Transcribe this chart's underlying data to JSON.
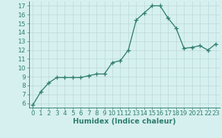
{
  "xlabel": "Humidex (Indice chaleur)",
  "x": [
    0,
    1,
    2,
    3,
    4,
    5,
    6,
    7,
    8,
    9,
    10,
    11,
    12,
    13,
    14,
    15,
    16,
    17,
    18,
    19,
    20,
    21,
    22,
    23
  ],
  "y": [
    5.8,
    7.3,
    8.3,
    8.9,
    8.9,
    8.9,
    8.9,
    9.1,
    9.3,
    9.3,
    10.6,
    10.8,
    12.0,
    15.4,
    16.2,
    17.0,
    17.0,
    15.6,
    14.5,
    12.2,
    12.3,
    12.5,
    12.0,
    12.7
  ],
  "line_color": "#2e7d6e",
  "marker": "+",
  "marker_size": 4,
  "line_width": 1.0,
  "background_color": "#d6f0ef",
  "grid_color": "#b8d8d4",
  "ylim": [
    5.5,
    17.5
  ],
  "xlim": [
    -0.5,
    23.5
  ],
  "yticks": [
    6,
    7,
    8,
    9,
    10,
    11,
    12,
    13,
    14,
    15,
    16,
    17
  ],
  "xticks": [
    0,
    1,
    2,
    3,
    4,
    5,
    6,
    7,
    8,
    9,
    10,
    11,
    12,
    13,
    14,
    15,
    16,
    17,
    18,
    19,
    20,
    21,
    22,
    23
  ],
  "tick_label_fontsize": 6.5,
  "xlabel_fontsize": 7.5,
  "tick_color": "#2e7d6e",
  "axis_color": "#2e7d6e",
  "spine_color": "#2e7d6e"
}
